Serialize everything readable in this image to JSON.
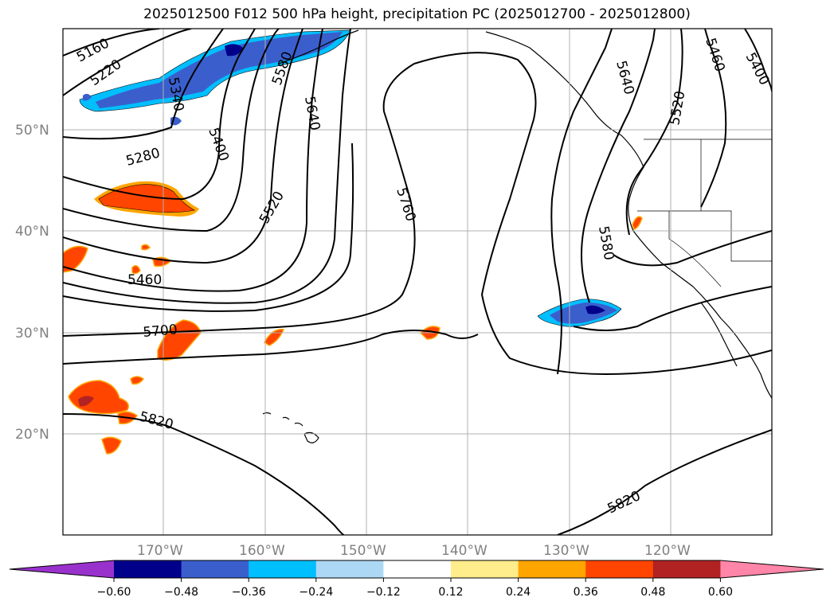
{
  "title": "2025012500 F012 500 hPa height, precipitation PC (2025012700 - 2025012800)",
  "map": {
    "lat_labels": [
      "50°N",
      "40°N",
      "30°N",
      "20°N"
    ],
    "lon_labels": [
      "170°W",
      "160°W",
      "150°W",
      "140°W",
      "130°W",
      "120°W"
    ],
    "contour_labels": [
      "5160",
      "5220",
      "5340",
      "5580",
      "5640",
      "5280",
      "5400",
      "5520",
      "5760",
      "5460",
      "5700",
      "5820",
      "5640",
      "5460",
      "5400",
      "5520",
      "5580",
      "5820"
    ],
    "contour_color": "#000000",
    "grid": true,
    "coastlines": true
  },
  "colorbar": {
    "levels": [
      "−0.60",
      "−0.48",
      "−0.36",
      "−0.24",
      "−0.12",
      "0.12",
      "0.24",
      "0.36",
      "0.48",
      "0.60"
    ],
    "colors": [
      "#9932cc",
      "#00008b",
      "#3a5fcd",
      "#00bfff",
      "#add8f5",
      "#ffffff",
      "#ffec8b",
      "#ffa500",
      "#ff4500",
      "#b22222",
      "#ff86a8"
    ],
    "extend": "both"
  }
}
